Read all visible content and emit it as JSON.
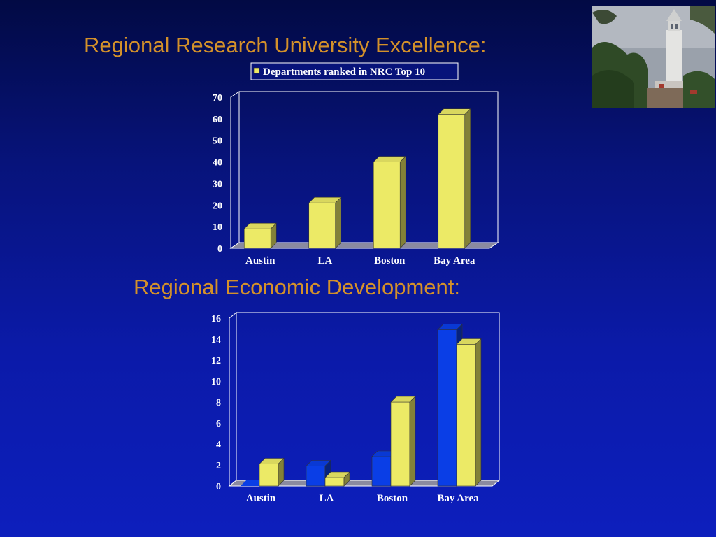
{
  "slide": {
    "title_1": "Regional Research University Excellence:",
    "title_2": "Regional Economic Development:"
  },
  "photo": {
    "icon": "campanile-tower-photo"
  },
  "colors": {
    "background_top": "#020a44",
    "background_bottom": "#0d1fbd",
    "title": "#d4912a",
    "bar_yellow": "#ecea66",
    "bar_blue": "#0a3ee6",
    "axis_text": "#ffffff"
  },
  "chart_data": [
    {
      "type": "bar",
      "categories": [
        "Austin",
        "LA",
        "Boston",
        "Bay Area"
      ],
      "series": [
        {
          "name": "Departments ranked in NRC Top 10",
          "values": [
            9,
            21,
            40,
            62
          ]
        }
      ],
      "ylim": [
        0,
        70
      ],
      "yticks": [
        0,
        10,
        20,
        30,
        40,
        50,
        60,
        70
      ],
      "legend": "top",
      "grid": false
    },
    {
      "type": "bar",
      "categories": [
        "Austin",
        "LA",
        "Boston",
        "Bay Area"
      ],
      "series": [
        {
          "values": [
            0,
            1.9,
            2.8,
            14.9
          ]
        },
        {
          "values": [
            2.1,
            0.8,
            8.0,
            13.5
          ]
        }
      ],
      "ylim": [
        0,
        16
      ],
      "yticks": [
        0,
        2,
        4,
        6,
        8,
        10,
        12,
        14,
        16
      ],
      "legend": "none",
      "grid": false
    }
  ]
}
